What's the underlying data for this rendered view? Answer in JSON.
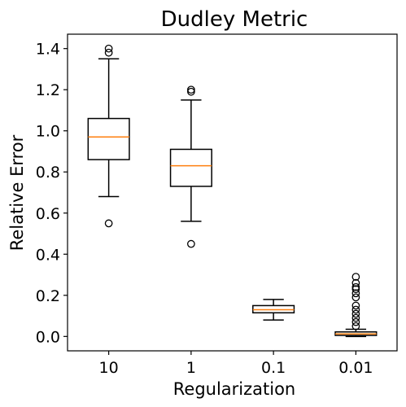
{
  "chart_data": {
    "type": "boxplot",
    "title": "Dudley Metric",
    "xlabel": "Regularization",
    "ylabel": "Relative Error",
    "categories": [
      "10",
      "1",
      "0.1",
      "0.01"
    ],
    "ylim": [
      -0.07,
      1.47
    ],
    "yticks": [
      0.0,
      0.2,
      0.4,
      0.6,
      0.8,
      1.0,
      1.2,
      1.4
    ],
    "ytick_labels": [
      "0.0",
      "0.2",
      "0.4",
      "0.6",
      "0.8",
      "1.0",
      "1.2",
      "1.4"
    ],
    "grid": false,
    "legend": "none",
    "colors": {
      "box": "#000000",
      "median": "#ff7f0e",
      "flier": "#000000"
    },
    "boxes": [
      {
        "category": "10",
        "whisker_low": 0.68,
        "q1": 0.86,
        "median": 0.97,
        "q3": 1.06,
        "whisker_high": 1.35,
        "fliers": [
          0.55,
          1.38,
          1.4
        ]
      },
      {
        "category": "1",
        "whisker_low": 0.56,
        "q1": 0.73,
        "median": 0.83,
        "q3": 0.91,
        "whisker_high": 1.15,
        "fliers": [
          0.45,
          1.19,
          1.2
        ]
      },
      {
        "category": "0.1",
        "whisker_low": 0.08,
        "q1": 0.115,
        "median": 0.13,
        "q3": 0.15,
        "whisker_high": 0.18,
        "fliers": []
      },
      {
        "category": "0.01",
        "whisker_low": 0.0,
        "q1": 0.005,
        "median": 0.012,
        "q3": 0.022,
        "whisker_high": 0.035,
        "fliers": [
          0.05,
          0.07,
          0.09,
          0.11,
          0.13,
          0.15,
          0.19,
          0.21,
          0.23,
          0.24,
          0.26,
          0.29
        ]
      }
    ]
  }
}
